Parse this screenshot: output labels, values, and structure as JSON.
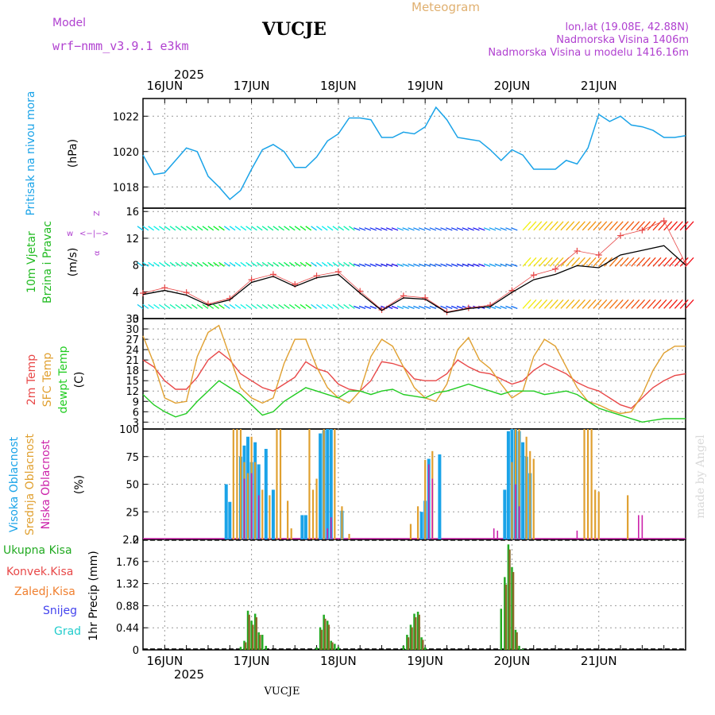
{
  "header": {
    "model_label": "Model",
    "model_name": "wrf−nmm_v3.9.1  e3km",
    "station": "VUCJE",
    "chart_type": "Meteogram",
    "lonlat": "lon,lat (19.08E, 42.88N)",
    "altitude": "Nadmorska Visina 1406m",
    "model_altitude": "Nadmorska Visina u modelu 1416.16m",
    "footer_station": "VUCJE",
    "watermark": "made by Angel"
  },
  "colors": {
    "pressure": "#1aa3e8",
    "temp2m": "#e84848",
    "sfc": "#e0a030",
    "dewpt": "#22cc22",
    "high": "#1aa3e8",
    "mid": "#e0a030",
    "low": "#cc22aa",
    "total": "#22aa22",
    "conv": "#e84848",
    "frozen": "#f08030",
    "snow": "#4444ee",
    "hail": "#22cccc",
    "wind": "#e84848",
    "purple": "#b040d0"
  },
  "chart_data": [
    {
      "type": "line",
      "name": "pressure",
      "title": "Pritisak na nivou mora",
      "ylabel": "(hPa)",
      "ylim": [
        1016.8,
        1023
      ],
      "yticks": [
        1018,
        1020,
        1022
      ],
      "ytick_labels": [
        "1018",
        "1020",
        "1022"
      ],
      "x_hours": [
        0,
        3,
        6,
        9,
        12,
        15,
        18,
        21,
        24,
        27,
        30,
        33,
        36,
        39,
        42,
        45,
        48,
        51,
        54,
        57,
        60,
        63,
        66,
        69,
        72,
        75,
        78,
        81,
        84,
        87,
        90,
        93,
        96,
        99,
        102,
        105,
        108,
        111,
        114,
        117,
        120,
        123,
        126,
        129,
        132,
        135,
        138,
        141,
        144,
        147,
        150
      ],
      "values": [
        1019.8,
        1018.7,
        1018.8,
        1019.5,
        1020.2,
        1020.0,
        1018.6,
        1018.0,
        1017.3,
        1017.8,
        1019.0,
        1020.1,
        1020.4,
        1020.0,
        1019.1,
        1019.1,
        1019.7,
        1020.6,
        1021.0,
        1021.9,
        1021.9,
        1021.8,
        1020.8,
        1020.8,
        1021.1,
        1021.0,
        1021.4,
        1022.5,
        1021.8,
        1020.8,
        1020.7,
        1020.6,
        1020.1,
        1019.5,
        1020.1,
        1019.8,
        1019.0,
        1019.0,
        1019.0,
        1019.5,
        1019.3,
        1020.2,
        1022.1,
        1021.7,
        1022.0,
        1021.5,
        1021.4,
        1021.2,
        1020.8,
        1020.8,
        1020.9
      ]
    },
    {
      "type": "line",
      "name": "wind",
      "title": "10m Vjetar Brzina i Pravac",
      "ylabel": "(m/s)",
      "ylim": [
        0,
        16.5
      ],
      "yticks": [
        0,
        4,
        8,
        12,
        16
      ],
      "ytick_labels": [
        "0",
        "4",
        "8",
        "12",
        "16"
      ],
      "compass": [
        "w",
        "<−|−>",
        "Z",
        "s",
        "α",
        "<−|−>",
        "N",
        "E"
      ],
      "barb_levels": [
        1.5,
        7.8,
        13.2
      ],
      "series": [
        {
          "name": "wind speed (marked)",
          "style": "cross",
          "x_hours": [
            0,
            6,
            12,
            18,
            24,
            30,
            36,
            42,
            48,
            54,
            60,
            66,
            72,
            78,
            84,
            90,
            96,
            102,
            108,
            114,
            120,
            126,
            132,
            138,
            144,
            150
          ],
          "values": [
            3.8,
            4.6,
            3.9,
            2.2,
            3.0,
            5.8,
            6.6,
            5.1,
            6.4,
            7.0,
            4.1,
            1.3,
            3.4,
            3.1,
            1.0,
            1.6,
            2.0,
            4.2,
            6.5,
            7.4,
            10.1,
            9.5,
            12.4,
            13.2,
            14.6,
            8.2
          ]
        },
        {
          "name": "wind speed (line)",
          "style": "line",
          "x_hours": [
            0,
            6,
            12,
            18,
            24,
            30,
            36,
            42,
            48,
            54,
            60,
            66,
            72,
            78,
            84,
            90,
            96,
            102,
            108,
            114,
            120,
            126,
            132,
            138,
            144,
            150
          ],
          "values": [
            3.6,
            4.2,
            3.5,
            2.0,
            2.8,
            5.4,
            6.3,
            4.8,
            6.1,
            6.6,
            3.8,
            1.2,
            3.1,
            2.9,
            0.9,
            1.5,
            1.8,
            3.9,
            5.8,
            6.6,
            7.9,
            7.6,
            9.5,
            10.2,
            10.9,
            8.0
          ]
        }
      ]
    },
    {
      "type": "line",
      "name": "temperature",
      "title": "2m Temp / SFC Temp / dewpt Temp",
      "ylabel": "(C)",
      "ylim": [
        1,
        33
      ],
      "yticks": [
        3,
        6,
        9,
        12,
        15,
        18,
        21,
        24,
        27,
        30,
        33
      ],
      "ytick_labels": [
        "3",
        "6",
        "9",
        "12",
        "15",
        "18",
        "21",
        "24",
        "27",
        "30",
        "33"
      ],
      "series": [
        {
          "name": "2m Temp",
          "x_hours": [
            0,
            3,
            6,
            9,
            12,
            15,
            18,
            21,
            24,
            27,
            30,
            33,
            36,
            39,
            42,
            45,
            48,
            51,
            54,
            57,
            60,
            63,
            66,
            69,
            72,
            75,
            78,
            81,
            84,
            87,
            90,
            93,
            96,
            99,
            102,
            105,
            108,
            111,
            114,
            117,
            120,
            123,
            126,
            129,
            132,
            135,
            138,
            141,
            144,
            147,
            150
          ],
          "values": [
            21,
            19,
            15,
            12.5,
            12.5,
            16,
            21,
            23.5,
            21,
            17,
            15,
            13,
            12,
            14,
            16,
            20.5,
            18.5,
            17.5,
            14,
            12.5,
            12,
            15,
            20.5,
            20,
            19,
            15.5,
            15,
            15,
            17,
            21,
            19,
            17.5,
            17,
            15.5,
            14,
            15,
            18,
            20,
            18.5,
            17,
            14.5,
            13,
            12,
            10,
            8,
            7,
            10,
            13,
            15,
            16.5,
            17
          ]
        },
        {
          "name": "SFC Temp",
          "x_hours": [
            0,
            3,
            6,
            9,
            12,
            15,
            18,
            21,
            24,
            27,
            30,
            33,
            36,
            39,
            42,
            45,
            48,
            51,
            54,
            57,
            60,
            63,
            66,
            69,
            72,
            75,
            78,
            81,
            84,
            87,
            90,
            93,
            96,
            99,
            102,
            105,
            108,
            111,
            114,
            117,
            120,
            123,
            126,
            129,
            132,
            135,
            138,
            141,
            144,
            147,
            150
          ],
          "values": [
            28,
            20,
            10,
            8.5,
            9,
            22,
            29,
            31,
            22,
            13,
            10,
            8.5,
            10,
            20,
            27,
            27,
            19,
            13,
            10,
            8.5,
            12,
            22,
            27,
            25,
            19,
            13,
            10,
            9,
            14,
            24,
            27.5,
            21,
            18.5,
            14,
            10,
            12,
            22,
            27,
            25,
            19,
            13,
            9,
            8,
            6.5,
            5.5,
            6,
            11,
            18,
            23,
            25,
            25
          ]
        },
        {
          "name": "dewpt Temp",
          "x_hours": [
            0,
            3,
            6,
            9,
            12,
            15,
            18,
            21,
            24,
            27,
            30,
            33,
            36,
            39,
            42,
            45,
            48,
            51,
            54,
            57,
            60,
            63,
            66,
            69,
            72,
            75,
            78,
            81,
            84,
            87,
            90,
            93,
            96,
            99,
            102,
            105,
            108,
            111,
            114,
            117,
            120,
            123,
            126,
            129,
            132,
            135,
            138,
            141,
            144,
            147,
            150
          ],
          "values": [
            11,
            8,
            6,
            4.5,
            5.5,
            9,
            12,
            15,
            13,
            11,
            8,
            5,
            6,
            9,
            11,
            13,
            12,
            11,
            10,
            12,
            12,
            11,
            12,
            12.5,
            11,
            10.5,
            10,
            11.5,
            12,
            13,
            14,
            13,
            12,
            11,
            12,
            12,
            12,
            11,
            11.5,
            12,
            11,
            9,
            7,
            6,
            5,
            4,
            3,
            3.5,
            4,
            4,
            4
          ]
        }
      ]
    },
    {
      "type": "bar",
      "name": "clouds",
      "title": "Visoka / Srednja / Niska Oblacnost",
      "ylabel": "(%)",
      "ylim": [
        0,
        100
      ],
      "yticks": [
        0,
        25,
        50,
        75,
        100
      ],
      "ytick_labels": [
        "0",
        "25",
        "50",
        "75",
        "100"
      ],
      "series": [
        {
          "name": "Visoka Oblacnost",
          "x_hours": [
            23,
            24,
            27,
            28,
            29,
            30,
            31,
            32,
            34,
            36,
            44,
            45,
            49,
            50,
            51,
            52,
            55,
            77,
            78,
            79,
            82,
            100,
            101,
            102,
            103,
            104,
            105,
            106,
            107
          ],
          "values": [
            50,
            34,
            75,
            85,
            93,
            70,
            88,
            68,
            82,
            45,
            22,
            22,
            96,
            99,
            100,
            100,
            26,
            25,
            35,
            73,
            77,
            45,
            98,
            100,
            100,
            98,
            88,
            75,
            60
          ]
        },
        {
          "name": "Srednja Oblacnost",
          "x_hours": [
            25,
            26,
            27,
            28,
            29,
            30,
            31,
            33,
            35,
            37,
            38,
            40,
            41,
            46,
            47,
            48,
            50,
            53,
            55,
            57,
            74,
            76,
            78,
            80,
            102,
            103,
            104,
            106,
            107,
            108,
            122,
            123,
            124,
            125,
            126,
            134
          ],
          "values": [
            100,
            100,
            100,
            70,
            60,
            93,
            70,
            45,
            40,
            100,
            100,
            35,
            10,
            100,
            45,
            55,
            100,
            100,
            30,
            5,
            14,
            30,
            72,
            80,
            70,
            100,
            100,
            93,
            80,
            73,
            100,
            100,
            100,
            45,
            43,
            40
          ]
        },
        {
          "name": "Niska Oblacnost",
          "x_hours": [
            28,
            30,
            32,
            51,
            52,
            79,
            80,
            97,
            98,
            103,
            104,
            120,
            137,
            138
          ],
          "values": [
            55,
            60,
            40,
            10,
            20,
            68,
            55,
            10,
            8,
            50,
            30,
            8,
            22,
            22
          ]
        }
      ]
    },
    {
      "type": "bar",
      "name": "precipitation",
      "title": "1hr Precip",
      "ylabel": "1hr Precip (mm)",
      "ylim": [
        0,
        2.2
      ],
      "yticks": [
        0,
        0.44,
        0.88,
        1.32,
        1.76,
        2.2
      ],
      "ytick_labels": [
        "0",
        "0.44",
        "0.88",
        "1.32",
        "1.76",
        "2.2"
      ],
      "legend": [
        "Ukupna  Kisa",
        "Konvek.Kisa",
        "Zaledj.Kisa",
        "Snijeg",
        "Grad"
      ],
      "series": [
        {
          "name": "Ukupna Kisa",
          "x_hours": [
            27,
            28,
            29,
            30,
            31,
            32,
            33,
            34,
            48,
            49,
            50,
            51,
            52,
            53,
            54,
            72,
            73,
            74,
            75,
            76,
            77,
            78,
            99,
            100,
            101,
            102,
            103,
            104,
            105
          ],
          "values": [
            0.06,
            0.18,
            0.78,
            0.58,
            0.72,
            0.35,
            0.3,
            0.08,
            0.05,
            0.45,
            0.7,
            0.58,
            0.18,
            0.12,
            0.06,
            0.08,
            0.3,
            0.5,
            0.72,
            0.76,
            0.25,
            0.05,
            0.82,
            1.45,
            2.1,
            1.65,
            0.4,
            0.08,
            0.02
          ]
        },
        {
          "name": "Konvek.Kisa",
          "x_hours": [
            28,
            29,
            30,
            31,
            32,
            49,
            50,
            51,
            52,
            73,
            74,
            75,
            76,
            77,
            100,
            101,
            102,
            103
          ],
          "values": [
            0.15,
            0.7,
            0.5,
            0.65,
            0.3,
            0.4,
            0.62,
            0.5,
            0.15,
            0.25,
            0.45,
            0.65,
            0.7,
            0.2,
            1.3,
            2.0,
            1.55,
            0.35
          ]
        }
      ]
    }
  ],
  "axes": {
    "day_labels": [
      "16JUN",
      "17JUN",
      "18JUN",
      "19JUN",
      "20JUN",
      "21JUN"
    ],
    "year": "2025",
    "hours_total": 150
  }
}
